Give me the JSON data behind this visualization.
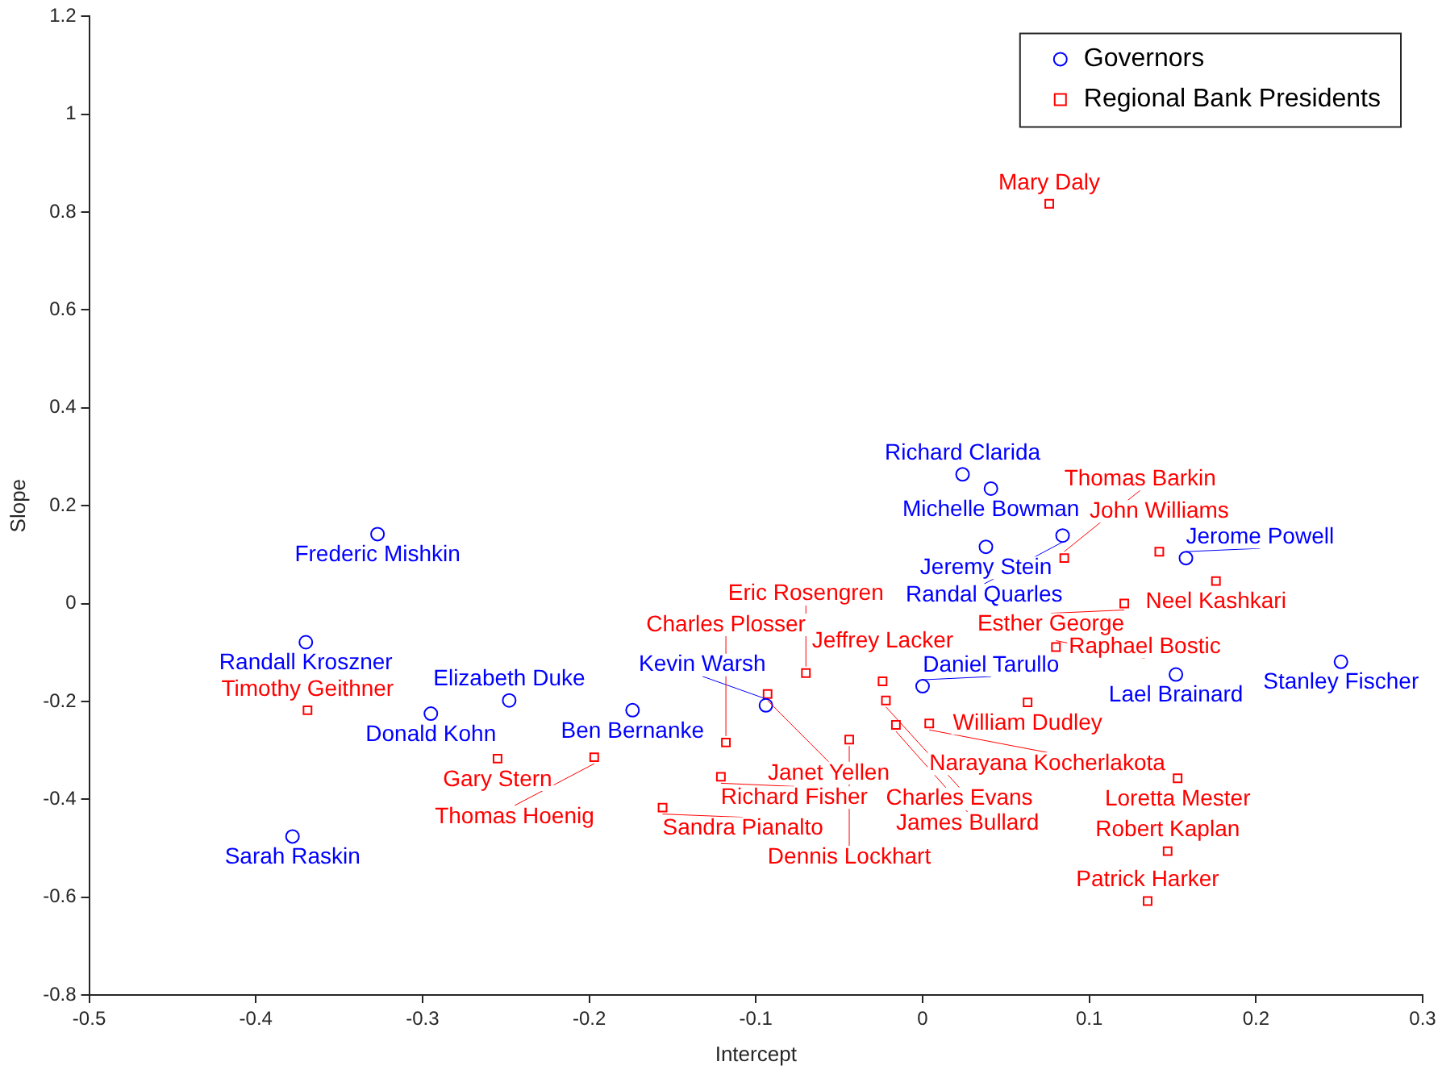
{
  "chart_data": {
    "type": "scatter",
    "xlabel": "Intercept",
    "ylabel": "Slope",
    "xlim": [
      -0.5,
      0.3
    ],
    "ylim": [
      -0.8,
      1.2
    ],
    "xticks": [
      -0.5,
      -0.4,
      -0.3,
      -0.2,
      -0.1,
      0,
      0.1,
      0.2,
      0.3
    ],
    "yticks": [
      -0.8,
      -0.6,
      -0.4,
      -0.2,
      0,
      0.2,
      0.4,
      0.6,
      0.8,
      1,
      1.2
    ],
    "grid": false,
    "legend": "top right",
    "series": [
      {
        "name": "Governors",
        "color": "#0000ff",
        "marker": "circle",
        "x": [
          -0.327,
          -0.37,
          -0.378,
          -0.295,
          -0.248,
          -0.174,
          -0.094,
          0.0,
          0.024,
          0.041,
          0.038,
          0.084,
          0.158,
          0.152,
          0.251
        ],
        "values": [
          0.142,
          -0.079,
          -0.476,
          -0.225,
          -0.198,
          -0.218,
          -0.208,
          -0.169,
          0.264,
          0.235,
          0.116,
          0.139,
          0.093,
          -0.145,
          -0.119
        ]
      },
      {
        "name": "Regional Bank Presidents",
        "color": "#ff0000",
        "marker": "square",
        "x": [
          0.076,
          -0.369,
          -0.255,
          -0.197,
          -0.156,
          -0.121,
          -0.118,
          -0.093,
          -0.07,
          -0.024,
          -0.022,
          0.063,
          0.004,
          -0.016,
          -0.044,
          0.085,
          0.142,
          0.176,
          0.121,
          0.08,
          0.153,
          0.147,
          0.135
        ],
        "values": [
          0.817,
          -0.218,
          -0.317,
          -0.314,
          -0.417,
          -0.354,
          -0.284,
          -0.185,
          -0.142,
          -0.159,
          -0.198,
          -0.202,
          -0.245,
          -0.248,
          -0.278,
          0.093,
          0.106,
          0.046,
          0.0,
          -0.089,
          -0.357,
          -0.506,
          -0.608
        ]
      }
    ],
    "annotations": [
      {
        "text": "Frederic Mishkin",
        "x": -0.327,
        "y": 0.142
      },
      {
        "text": "Randall Kroszner",
        "x": -0.37,
        "y": -0.079
      },
      {
        "text": "Sarah Raskin",
        "x": -0.378,
        "y": -0.476
      },
      {
        "text": "Donald Kohn",
        "x": -0.295,
        "y": -0.225
      },
      {
        "text": "Elizabeth Duke",
        "x": -0.248,
        "y": -0.198
      },
      {
        "text": "Ben Bernanke",
        "x": -0.174,
        "y": -0.218
      },
      {
        "text": "Kevin Warsh",
        "x": -0.094,
        "y": -0.208
      },
      {
        "text": "Daniel Tarullo",
        "x": 0.0,
        "y": -0.169
      },
      {
        "text": "Richard Clarida",
        "x": 0.024,
        "y": 0.264
      },
      {
        "text": "Michelle Bowman",
        "x": 0.041,
        "y": 0.235
      },
      {
        "text": "Jeremy Stein",
        "x": 0.038,
        "y": 0.116
      },
      {
        "text": "Randal Quarles",
        "x": 0.084,
        "y": 0.139
      },
      {
        "text": "Jerome Powell",
        "x": 0.158,
        "y": 0.093
      },
      {
        "text": "Lael Brainard",
        "x": 0.152,
        "y": -0.145
      },
      {
        "text": "Stanley Fischer",
        "x": 0.251,
        "y": -0.119
      },
      {
        "text": "Mary Daly",
        "x": 0.076,
        "y": 0.817
      },
      {
        "text": "Timothy Geithner",
        "x": -0.369,
        "y": -0.218
      },
      {
        "text": "Gary Stern",
        "x": -0.255,
        "y": -0.317
      },
      {
        "text": "Thomas Hoenig",
        "x": -0.197,
        "y": -0.314
      },
      {
        "text": "Sandra Pianalto",
        "x": -0.156,
        "y": -0.417
      },
      {
        "text": "Richard Fisher",
        "x": -0.121,
        "y": -0.354
      },
      {
        "text": "Charles Plosser",
        "x": -0.118,
        "y": -0.284
      },
      {
        "text": "Janet Yellen",
        "x": -0.093,
        "y": -0.185
      },
      {
        "text": "Eric Rosengren",
        "x": -0.07,
        "y": -0.142
      },
      {
        "text": "Jeffrey Lacker",
        "x": -0.024,
        "y": -0.159
      },
      {
        "text": "Charles Evans",
        "x": -0.022,
        "y": -0.198
      },
      {
        "text": "William Dudley",
        "x": 0.063,
        "y": -0.202
      },
      {
        "text": "Narayana Kocherlakota",
        "x": 0.004,
        "y": -0.245
      },
      {
        "text": "James Bullard",
        "x": -0.016,
        "y": -0.248
      },
      {
        "text": "Dennis Lockhart",
        "x": -0.044,
        "y": -0.278
      },
      {
        "text": "Thomas Barkin",
        "x": 0.085,
        "y": 0.093
      },
      {
        "text": "John Williams",
        "x": 0.142,
        "y": 0.106
      },
      {
        "text": "Neel Kashkari",
        "x": 0.176,
        "y": 0.046
      },
      {
        "text": "Esther George",
        "x": 0.121,
        "y": 0.0
      },
      {
        "text": "Raphael Bostic",
        "x": 0.08,
        "y": -0.089
      },
      {
        "text": "Loretta Mester",
        "x": 0.153,
        "y": -0.357
      },
      {
        "text": "Robert Kaplan",
        "x": 0.147,
        "y": -0.506
      },
      {
        "text": "Patrick Harker",
        "x": 0.135,
        "y": -0.608
      }
    ]
  }
}
